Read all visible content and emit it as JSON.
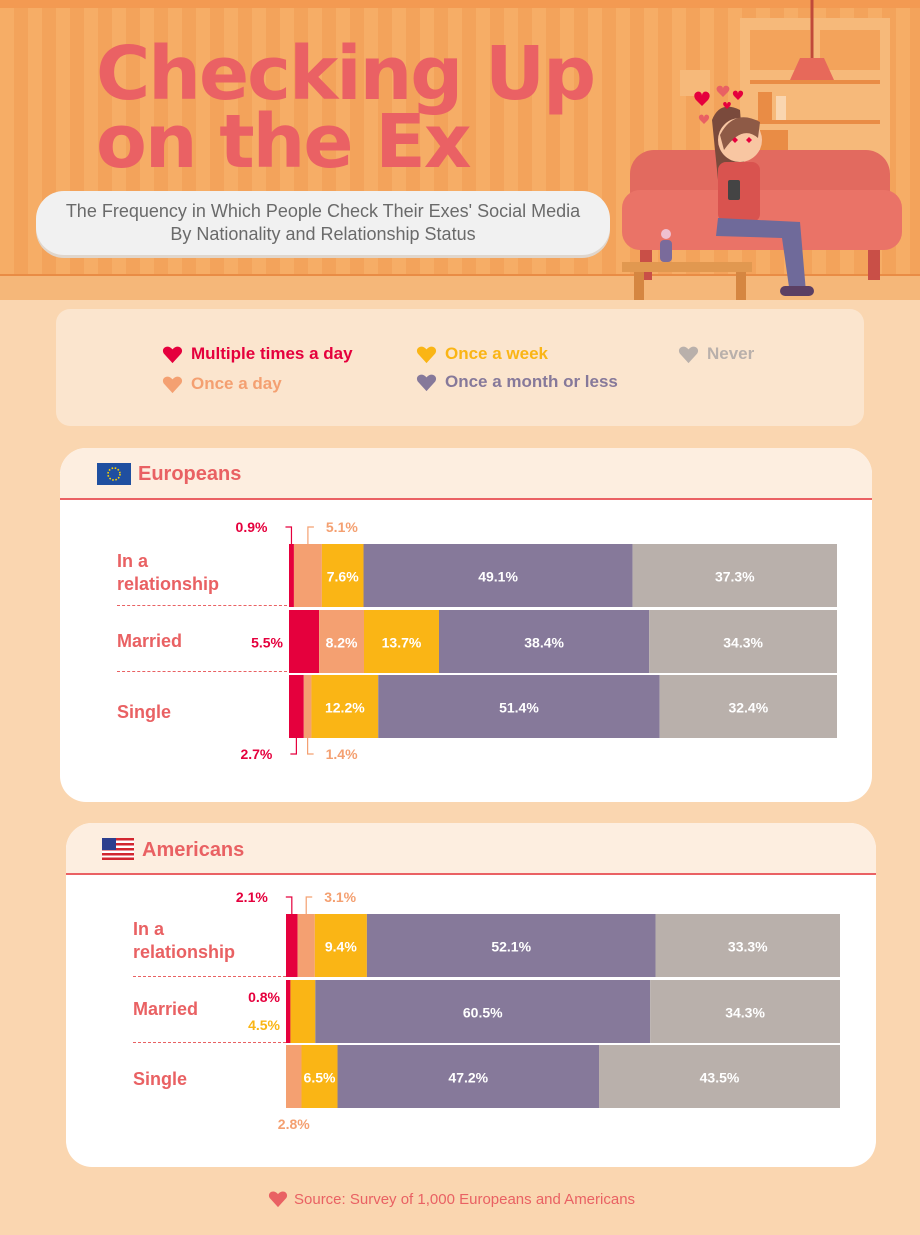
{
  "title_line1": "Checking Up",
  "title_line2": "on the Ex",
  "subtitle_line1": "The Frequency in Which People Check Their Exes' Social Media",
  "subtitle_line2": "By Nationality and Relationship Status",
  "legend": [
    {
      "label": "Multiple times a day",
      "color": "#e5003d"
    },
    {
      "label": "Once a day",
      "color": "#f4a071"
    },
    {
      "label": "Once a week",
      "color": "#fab515"
    },
    {
      "label": "Once a month or less",
      "color": "#86799a"
    },
    {
      "label": "Never",
      "color": "#b9b0ab"
    }
  ],
  "colors": {
    "accent": "#e96163",
    "background": "#fad6b0"
  },
  "chart_data": [
    {
      "type": "bar",
      "orientation": "horizontal-stacked-percent",
      "title": "Europeans",
      "flag_icon": "eu-flag-icon",
      "categories": [
        "In a relationship",
        "Married",
        "Single"
      ],
      "series": [
        {
          "name": "Multiple times a day",
          "values": [
            0.9,
            5.5,
            2.7
          ]
        },
        {
          "name": "Once a day",
          "values": [
            5.1,
            8.2,
            1.4
          ]
        },
        {
          "name": "Once a week",
          "values": [
            7.6,
            13.7,
            12.2
          ]
        },
        {
          "name": "Once a month or less",
          "values": [
            49.1,
            38.4,
            51.4
          ]
        },
        {
          "name": "Never",
          "values": [
            37.3,
            34.3,
            32.4
          ]
        }
      ]
    },
    {
      "type": "bar",
      "orientation": "horizontal-stacked-percent",
      "title": "Americans",
      "flag_icon": "us-flag-icon",
      "categories": [
        "In a relationship",
        "Married",
        "Single"
      ],
      "series": [
        {
          "name": "Multiple times a day",
          "values": [
            2.1,
            0.8,
            0
          ]
        },
        {
          "name": "Once a day",
          "values": [
            3.1,
            0,
            2.8
          ]
        },
        {
          "name": "Once a week",
          "values": [
            9.4,
            4.5,
            6.5
          ]
        },
        {
          "name": "Once a month or less",
          "values": [
            52.1,
            60.5,
            47.2
          ]
        },
        {
          "name": "Never",
          "values": [
            33.3,
            34.3,
            43.5
          ]
        }
      ]
    }
  ],
  "source": "Source: Survey of 1,000 Europeans and Americans"
}
